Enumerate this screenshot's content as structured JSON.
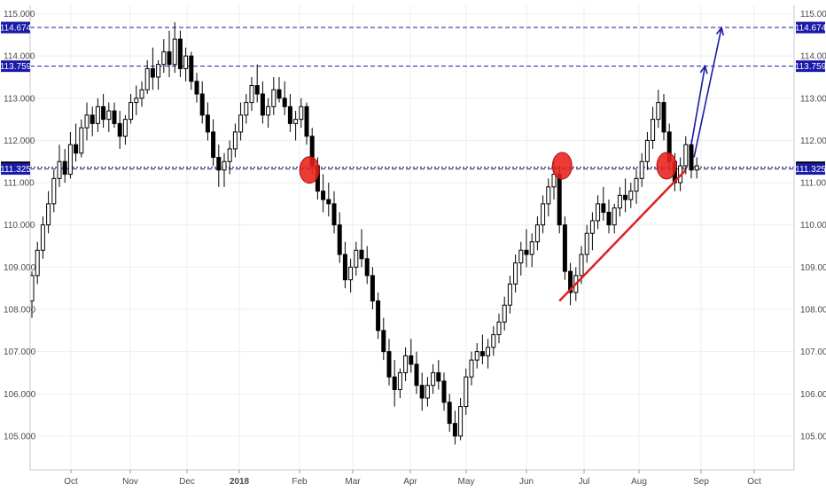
{
  "chart_data": {
    "type": "candlestick",
    "title": "",
    "xlabel": "",
    "ylabel": "",
    "ylim": [
      104.2,
      115.2
    ],
    "y_ticks": [
      "105.000",
      "106.000",
      "107.000",
      "108.000",
      "109.000",
      "110.000",
      "111.000",
      "112.000",
      "113.000",
      "114.000",
      "115.000"
    ],
    "x_ticks": [
      "Oct",
      "Nov",
      "Dec",
      "2018",
      "Feb",
      "Mar",
      "Apr",
      "May",
      "Jun",
      "Jul",
      "Aug",
      "Sep",
      "Oct"
    ],
    "grid": true,
    "colors": {
      "candle": "#000000",
      "resistance_line": "#1a1aa8",
      "support_line": "#e0201e",
      "circles": "#e8201a",
      "arrows": "#1a1aa8",
      "badge_blue": "#1a1aa8",
      "badge_black": "#000000"
    },
    "horizontal_levels": [
      {
        "label": "114.674",
        "value": 114.674,
        "style": "dashed",
        "color": "#1a1aa8"
      },
      {
        "label": "113.759",
        "value": 113.759,
        "style": "dashed",
        "color": "#1a1aa8"
      },
      {
        "label": "111.364",
        "value": 111.364,
        "style": "dotted",
        "color": "#000000"
      },
      {
        "label": "111.325",
        "value": 111.325,
        "style": "dashed",
        "color": "#1a1aa8"
      }
    ],
    "candles": [
      [
        108.2,
        108.9,
        107.8,
        108.8
      ],
      [
        108.8,
        109.6,
        108.6,
        109.4
      ],
      [
        109.4,
        110.2,
        109.2,
        110.0
      ],
      [
        110.0,
        110.8,
        109.8,
        110.5
      ],
      [
        110.5,
        111.3,
        110.3,
        111.1
      ],
      [
        111.1,
        111.9,
        110.9,
        111.5
      ],
      [
        111.5,
        111.8,
        111.0,
        111.2
      ],
      [
        111.2,
        112.2,
        111.1,
        111.9
      ],
      [
        111.9,
        112.4,
        111.5,
        111.7
      ],
      [
        111.7,
        112.5,
        111.6,
        112.3
      ],
      [
        112.3,
        112.9,
        112.0,
        112.6
      ],
      [
        112.6,
        112.8,
        112.1,
        112.4
      ],
      [
        112.4,
        113.0,
        112.2,
        112.8
      ],
      [
        112.8,
        113.1,
        112.3,
        112.5
      ],
      [
        112.5,
        112.9,
        112.2,
        112.7
      ],
      [
        112.7,
        112.9,
        112.3,
        112.4
      ],
      [
        112.4,
        112.7,
        111.8,
        112.1
      ],
      [
        112.1,
        112.6,
        111.9,
        112.5
      ],
      [
        112.5,
        113.1,
        112.4,
        112.9
      ],
      [
        112.9,
        113.3,
        112.6,
        113.0
      ],
      [
        113.0,
        113.4,
        112.8,
        113.2
      ],
      [
        113.2,
        113.9,
        113.1,
        113.7
      ],
      [
        113.7,
        114.2,
        113.2,
        113.5
      ],
      [
        113.5,
        113.9,
        113.2,
        113.8
      ],
      [
        113.8,
        114.4,
        113.6,
        114.1
      ],
      [
        114.1,
        114.6,
        113.5,
        113.8
      ],
      [
        113.8,
        114.8,
        113.6,
        114.4
      ],
      [
        114.4,
        114.6,
        113.5,
        113.7
      ],
      [
        113.7,
        114.2,
        113.4,
        114.0
      ],
      [
        114.0,
        114.1,
        113.2,
        113.4
      ],
      [
        113.4,
        113.6,
        112.9,
        113.1
      ],
      [
        113.1,
        113.4,
        112.4,
        112.6
      ],
      [
        112.6,
        112.9,
        112.0,
        112.2
      ],
      [
        112.2,
        112.5,
        111.4,
        111.6
      ],
      [
        111.6,
        111.9,
        110.9,
        111.3
      ],
      [
        111.3,
        111.7,
        110.9,
        111.5
      ],
      [
        111.5,
        112.0,
        111.2,
        111.8
      ],
      [
        111.8,
        112.4,
        111.6,
        112.2
      ],
      [
        112.2,
        112.9,
        112.0,
        112.6
      ],
      [
        112.6,
        113.1,
        112.4,
        112.9
      ],
      [
        112.9,
        113.5,
        112.7,
        113.3
      ],
      [
        113.3,
        113.8,
        112.9,
        113.1
      ],
      [
        113.1,
        113.4,
        112.4,
        112.6
      ],
      [
        112.6,
        113.0,
        112.3,
        112.8
      ],
      [
        112.8,
        113.5,
        112.6,
        113.2
      ],
      [
        113.2,
        113.5,
        112.9,
        113.0
      ],
      [
        113.0,
        113.4,
        112.6,
        112.8
      ],
      [
        112.8,
        113.1,
        112.2,
        112.4
      ],
      [
        112.4,
        112.7,
        112.0,
        112.5
      ],
      [
        112.5,
        113.0,
        112.3,
        112.8
      ],
      [
        112.8,
        112.9,
        111.9,
        112.1
      ],
      [
        112.1,
        112.3,
        111.2,
        111.4
      ],
      [
        111.4,
        111.6,
        110.6,
        110.8
      ],
      [
        110.8,
        111.2,
        110.3,
        110.6
      ],
      [
        110.6,
        111.0,
        110.2,
        110.5
      ],
      [
        110.5,
        110.8,
        109.8,
        110.0
      ],
      [
        110.0,
        110.3,
        109.1,
        109.3
      ],
      [
        109.3,
        109.6,
        108.5,
        108.7
      ],
      [
        108.7,
        109.2,
        108.4,
        109.0
      ],
      [
        109.0,
        109.6,
        108.8,
        109.4
      ],
      [
        109.4,
        109.9,
        109.0,
        109.2
      ],
      [
        109.2,
        109.5,
        108.6,
        108.8
      ],
      [
        108.8,
        109.0,
        108.0,
        108.2
      ],
      [
        108.2,
        108.4,
        107.3,
        107.5
      ],
      [
        107.5,
        107.8,
        106.8,
        107.0
      ],
      [
        107.0,
        107.3,
        106.2,
        106.4
      ],
      [
        106.4,
        106.8,
        105.7,
        106.1
      ],
      [
        106.1,
        106.6,
        105.9,
        106.5
      ],
      [
        106.5,
        107.1,
        106.3,
        106.9
      ],
      [
        106.9,
        107.3,
        106.5,
        106.7
      ],
      [
        106.7,
        107.0,
        106.0,
        106.2
      ],
      [
        106.2,
        106.5,
        105.6,
        105.9
      ],
      [
        105.9,
        106.4,
        105.7,
        106.2
      ],
      [
        106.2,
        106.7,
        106.0,
        106.5
      ],
      [
        106.5,
        106.8,
        106.1,
        106.3
      ],
      [
        106.3,
        106.5,
        105.6,
        105.8
      ],
      [
        105.8,
        106.0,
        105.1,
        105.3
      ],
      [
        105.3,
        105.6,
        104.8,
        105.0
      ],
      [
        105.0,
        105.9,
        104.9,
        105.7
      ],
      [
        105.7,
        106.6,
        105.5,
        106.4
      ],
      [
        106.4,
        107.0,
        106.2,
        106.8
      ],
      [
        106.8,
        107.2,
        106.6,
        107.0
      ],
      [
        107.0,
        107.4,
        106.7,
        106.9
      ],
      [
        106.9,
        107.3,
        106.6,
        107.1
      ],
      [
        107.1,
        107.6,
        106.9,
        107.4
      ],
      [
        107.4,
        107.9,
        107.2,
        107.7
      ],
      [
        107.7,
        108.3,
        107.5,
        108.1
      ],
      [
        108.1,
        108.8,
        107.9,
        108.6
      ],
      [
        108.6,
        109.3,
        108.4,
        109.1
      ],
      [
        109.1,
        109.6,
        108.8,
        109.4
      ],
      [
        109.4,
        109.9,
        109.0,
        109.3
      ],
      [
        109.3,
        109.8,
        109.0,
        109.6
      ],
      [
        109.6,
        110.2,
        109.4,
        110.0
      ],
      [
        110.0,
        110.7,
        109.8,
        110.5
      ],
      [
        110.5,
        111.1,
        110.2,
        110.9
      ],
      [
        110.9,
        111.5,
        110.6,
        111.2
      ],
      [
        111.2,
        111.4,
        109.8,
        110.0
      ],
      [
        110.0,
        110.2,
        108.7,
        108.9
      ],
      [
        108.9,
        109.1,
        108.1,
        108.4
      ],
      [
        108.4,
        109.0,
        108.2,
        108.8
      ],
      [
        108.8,
        109.5,
        108.6,
        109.3
      ],
      [
        109.3,
        110.0,
        109.1,
        109.8
      ],
      [
        109.8,
        110.3,
        109.4,
        110.1
      ],
      [
        110.1,
        110.7,
        109.9,
        110.5
      ],
      [
        110.5,
        110.9,
        110.1,
        110.3
      ],
      [
        110.3,
        110.6,
        109.8,
        110.0
      ],
      [
        110.0,
        110.5,
        109.8,
        110.4
      ],
      [
        110.4,
        110.9,
        110.2,
        110.7
      ],
      [
        110.7,
        111.1,
        110.3,
        110.6
      ],
      [
        110.6,
        111.0,
        110.4,
        110.8
      ],
      [
        110.8,
        111.3,
        110.5,
        111.1
      ],
      [
        111.1,
        111.7,
        110.9,
        111.5
      ],
      [
        111.5,
        112.2,
        111.3,
        112.0
      ],
      [
        112.0,
        112.8,
        111.8,
        112.5
      ],
      [
        112.5,
        113.2,
        112.3,
        112.9
      ],
      [
        112.9,
        113.1,
        112.0,
        112.2
      ],
      [
        112.2,
        112.4,
        111.3,
        111.5
      ],
      [
        111.5,
        111.7,
        110.8,
        111.0
      ],
      [
        111.0,
        111.6,
        110.8,
        111.4
      ],
      [
        111.4,
        112.1,
        111.2,
        111.9
      ],
      [
        111.9,
        112.0,
        111.1,
        111.3
      ],
      [
        111.3,
        111.6,
        111.1,
        111.4
      ]
    ],
    "support_line": {
      "from": {
        "x": 96,
        "y": 108.2
      },
      "to": {
        "x": 119,
        "y": 111.3
      }
    },
    "circles": [
      {
        "x": 50.5,
        "y": 111.3
      },
      {
        "x": 96.5,
        "y": 111.4
      },
      {
        "x": 115.5,
        "y": 111.4
      }
    ],
    "arrows": [
      {
        "from": {
          "x": 120,
          "y": 111.9
        },
        "to": {
          "x": 122.5,
          "y": 113.76
        }
      },
      {
        "from": {
          "x": 120.5,
          "y": 111.6
        },
        "to": {
          "x": 125.5,
          "y": 114.67
        }
      }
    ]
  }
}
